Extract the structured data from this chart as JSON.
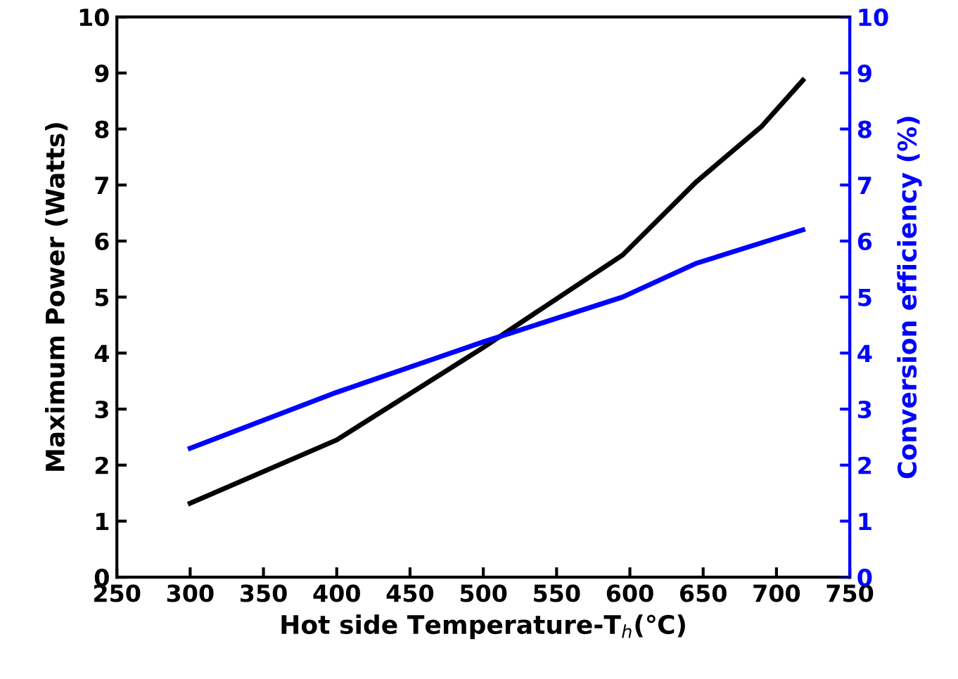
{
  "chart_data": {
    "type": "line",
    "xlabel": "Hot side Temperature-T$_{h}$(℃)",
    "ylabel": "Maximum Power (Watts)",
    "y2label": "Conversion efficiency (%)",
    "xlim": [
      250,
      750
    ],
    "xticks": [
      250,
      300,
      350,
      400,
      450,
      500,
      550,
      600,
      650,
      700,
      750
    ],
    "ylim": [
      0,
      10
    ],
    "yticks": [
      0,
      1,
      2,
      3,
      4,
      5,
      6,
      7,
      8,
      9,
      10
    ],
    "y2lim": [
      0,
      10
    ],
    "y2ticks": [
      0,
      1,
      2,
      3,
      4,
      5,
      6,
      7,
      8,
      9,
      10
    ],
    "grid": false,
    "legend": false,
    "marker": "none",
    "line_style": "solid",
    "series": [
      {
        "color": "#000000",
        "x": [
          300,
          400,
          500,
          595,
          645,
          690,
          718
        ],
        "values": [
          1.32,
          2.45,
          4.1,
          5.75,
          7.05,
          8.05,
          8.87
        ]
      },
      {
        "color": "#0000ff",
        "axis": "y2",
        "x": [
          300,
          400,
          500,
          595,
          645,
          718
        ],
        "values": [
          2.3,
          3.3,
          4.2,
          5.0,
          5.6,
          6.2
        ]
      }
    ]
  }
}
